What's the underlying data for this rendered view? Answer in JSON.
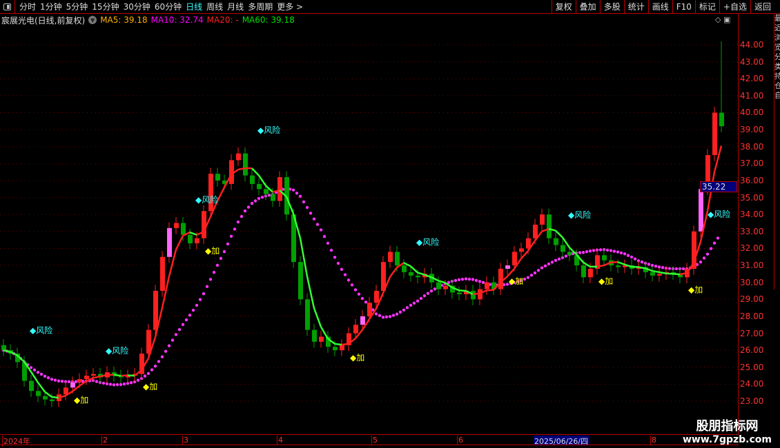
{
  "toolbar": {
    "periods": [
      "分时",
      "1分钟",
      "5分钟",
      "15分钟",
      "30分钟",
      "60分钟",
      "日线",
      "周线",
      "月线",
      "多周期",
      "更多 >"
    ],
    "active": "日线",
    "right_buttons": [
      "复权",
      "叠加",
      "多股",
      "统计",
      "画线",
      "F10",
      "标记",
      "+自选",
      "返回"
    ]
  },
  "info": {
    "title": "宸展光电(日线,前复权)",
    "ma5": "MA5: 39.18",
    "ma10": "MA10: 32.74",
    "ma20": "MA20: -",
    "ma60": "MA60: 39.18"
  },
  "colors": {
    "ma5": "#ffb000",
    "ma10": "#ff00ff",
    "ma20": "#ff2020",
    "ma60": "#00e000",
    "up": "#ff2020",
    "down": "#00a000",
    "accent": "#33ffff"
  },
  "price_axis": [
    "44.00",
    "43.00",
    "42.00",
    "41.00",
    "40.00",
    "39.00",
    "38.00",
    "37.00",
    "36.00",
    "35.00",
    "34.00",
    "33.00",
    "32.00",
    "31.00",
    "30.00",
    "29.00",
    "28.00",
    "27.00",
    "26.00",
    "25.00",
    "24.00",
    "23.00"
  ],
  "current_price": "35.22",
  "time_axis": [
    "2024年",
    "2",
    "3",
    "4",
    "5",
    "6",
    "8"
  ],
  "selected_date": "2025/06/26/四",
  "annotations": {
    "risk": "◆风险",
    "add": "◆加"
  },
  "watermark": {
    "name": "股朋指标网",
    "url": "www.7gpzb.com"
  },
  "right_strip": "最近浏览分类持仓自",
  "chart_data": {
    "type": "candlestick",
    "ylim": [
      22.5,
      45
    ],
    "closes": [
      26,
      25.8,
      25.3,
      24.2,
      23.6,
      23.3,
      23.1,
      23.0,
      23.4,
      23.8,
      24.1,
      24.3,
      24.5,
      24.6,
      24.4,
      24.7,
      24.5,
      24.4,
      24.5,
      24.6,
      25.8,
      27.2,
      29.5,
      31.5,
      33.2,
      33.5,
      32.8,
      32.3,
      32.6,
      34.2,
      36.4,
      36.0,
      35.8,
      37.2,
      37.6,
      36.3,
      35.8,
      35.5,
      35.2,
      34.8,
      36.2,
      34.0,
      31.2,
      29.0,
      27.2,
      26.5,
      26.8,
      26.2,
      26.0,
      26.3,
      27.0,
      27.5,
      28.0,
      28.8,
      29.5,
      31.2,
      31.8,
      31.0,
      30.6,
      30.4,
      30.3,
      30.5,
      30.0,
      29.6,
      29.8,
      29.4,
      29.3,
      29.5,
      29.0,
      29.6,
      30.0,
      29.6,
      30.8,
      31.0,
      31.8,
      32.0,
      32.6,
      33.4,
      34.0,
      32.6,
      32.2,
      31.8,
      31.6,
      31.0,
      30.3,
      30.8,
      31.6,
      31.3,
      31.0,
      30.9,
      31.0,
      30.8,
      30.9,
      30.6,
      30.4,
      30.5,
      30.6,
      30.5,
      30.3,
      30.8,
      33.0,
      35.5,
      37.5,
      40.0,
      39.2
    ],
    "last_high": 44.2,
    "risk_signals_index": [
      2,
      13,
      26,
      35,
      58,
      80,
      104
    ],
    "add_signals_index": [
      10,
      20,
      29,
      50,
      73,
      86,
      99
    ]
  }
}
